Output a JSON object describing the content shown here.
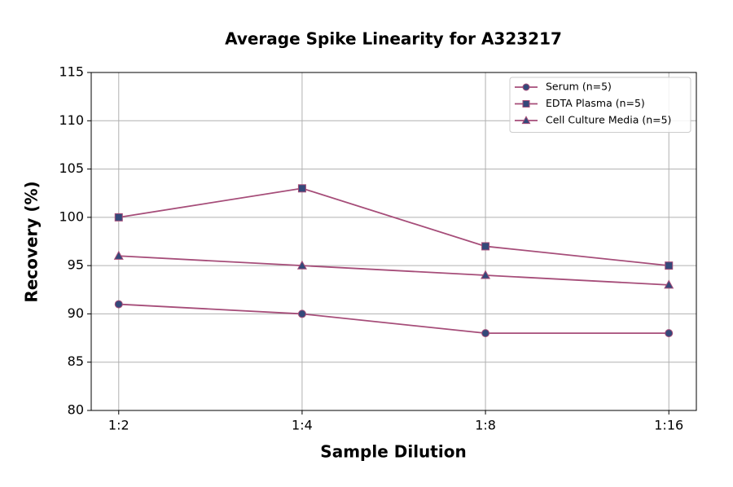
{
  "chart_data": {
    "type": "line",
    "title": "Average Spike Linearity for A323217",
    "x_label": "Sample Dilution",
    "y_label": "Recovery (%)",
    "categories": [
      "1:2",
      "1:4",
      "1:8",
      "1:16"
    ],
    "series": [
      {
        "name": "Serum (n=5)",
        "color": "#a64d79",
        "marker_color": "#34497a",
        "marker": "circle",
        "values": [
          91,
          90,
          88,
          88
        ]
      },
      {
        "name": "EDTA Plasma (n=5)",
        "color": "#a64d79",
        "marker_color": "#34497a",
        "marker": "square",
        "values": [
          100,
          103,
          97,
          95
        ]
      },
      {
        "name": "Cell Culture Media (n=5)",
        "color": "#a64d79",
        "marker_color": "#34497a",
        "marker": "triangle",
        "values": [
          96,
          95,
          94,
          93
        ]
      }
    ],
    "ylim": [
      80,
      115
    ],
    "yticks": [
      80,
      85,
      90,
      95,
      100,
      105,
      110,
      115
    ],
    "grid": true,
    "legend": "upper right"
  }
}
